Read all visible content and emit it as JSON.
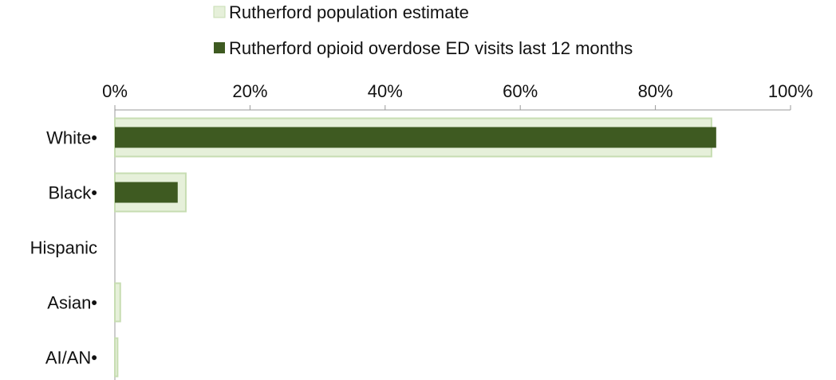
{
  "chart_data": {
    "type": "bar",
    "orientation": "horizontal",
    "categories": [
      "White•",
      "Black•",
      "Hispanic",
      "Asian•",
      "AI/AN•"
    ],
    "series": [
      {
        "name": "Rutherford population estimate",
        "values": [
          88.3,
          10.5,
          0,
          0.8,
          0.4
        ],
        "color": "#e6f0da",
        "border": "#c7ddb2"
      },
      {
        "name": "Rutherford opioid overdose ED visits last 12 months",
        "values": [
          89.0,
          9.3,
          0,
          0,
          0
        ],
        "color": "#3e5a21"
      }
    ],
    "x_ticks": [
      "0%",
      "20%",
      "40%",
      "60%",
      "80%",
      "100%"
    ],
    "xlim": [
      0,
      100
    ],
    "legend_position": "top",
    "grid": false
  }
}
